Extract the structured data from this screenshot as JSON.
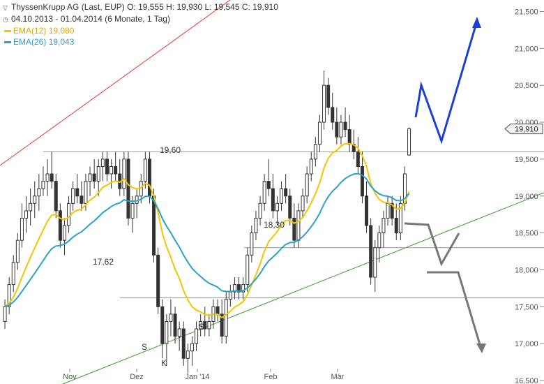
{
  "header": {
    "line1": "ThyssenKrupp AG (Last, EUP)  O: 19,555  H: 19,930  L: 19,545  C: 19,910",
    "line2": "04.10.2013 - 01.04.2014 (6 Monate, 1 Tag)",
    "ema12_label": "EMA(12)",
    "ema12_value": "19,080",
    "ema26_label": "EMA(26)",
    "ema26_value": "19,043"
  },
  "colors": {
    "ema12": "#f5c400",
    "ema26": "#2aa1c8",
    "candle": "#333333",
    "resistance_red": "#e33b2e",
    "support_green": "#3c9a2e",
    "arrow_blue": "#1b3fd6",
    "arrow_gray": "#777777"
  },
  "chart_data": {
    "type": "candlestick",
    "title": "ThyssenKrupp AG (Last, EUP)",
    "ylim": [
      16250,
      21700
    ],
    "y_ticks": [
      "16,500",
      "17,000",
      "17,500",
      "18,000",
      "18,500",
      "19,000",
      "19,500",
      "20,000",
      "20,500",
      "21,000",
      "21,500"
    ],
    "x_ticks": [
      "Nov",
      "Dez",
      "Jan '14",
      "Feb",
      "Mär"
    ],
    "last_price_label": "19,910",
    "horizontal_levels": [
      {
        "value": 19600,
        "label": "19,60"
      },
      {
        "value": 18300,
        "label": "18,30"
      },
      {
        "value": 17620,
        "label": "17,62"
      }
    ],
    "pattern_labels": [
      "S",
      "K",
      "S"
    ],
    "ohlc": [
      [
        17.3,
        17.6,
        17.2,
        17.5
      ],
      [
        17.5,
        17.9,
        17.4,
        17.8
      ],
      [
        17.8,
        18.2,
        17.7,
        18.1
      ],
      [
        18.1,
        18.5,
        18.0,
        18.4
      ],
      [
        18.4,
        18.9,
        18.3,
        18.7
      ],
      [
        18.7,
        19.0,
        18.5,
        18.8
      ],
      [
        18.8,
        19.1,
        18.6,
        18.9
      ],
      [
        18.9,
        19.2,
        18.7,
        19.0
      ],
      [
        19.0,
        19.3,
        18.8,
        19.1
      ],
      [
        19.1,
        19.4,
        19.0,
        19.2
      ],
      [
        19.2,
        19.5,
        19.0,
        19.3
      ],
      [
        19.3,
        19.6,
        19.1,
        19.2
      ],
      [
        19.2,
        19.3,
        18.7,
        18.8
      ],
      [
        18.8,
        18.9,
        18.3,
        18.4
      ],
      [
        18.4,
        18.7,
        18.2,
        18.6
      ],
      [
        18.6,
        19.0,
        18.5,
        18.9
      ],
      [
        18.9,
        19.2,
        18.8,
        19.1
      ],
      [
        19.1,
        19.3,
        18.9,
        19.0
      ],
      [
        19.0,
        19.2,
        18.8,
        18.9
      ],
      [
        18.9,
        19.3,
        18.8,
        19.2
      ],
      [
        19.2,
        19.4,
        19.0,
        19.3
      ],
      [
        19.3,
        19.5,
        19.1,
        19.2
      ],
      [
        19.2,
        19.5,
        19.0,
        19.4
      ],
      [
        19.4,
        19.6,
        19.2,
        19.5
      ],
      [
        19.5,
        19.6,
        19.2,
        19.3
      ],
      [
        19.3,
        19.5,
        19.1,
        19.4
      ],
      [
        19.4,
        19.6,
        19.2,
        19.3
      ],
      [
        19.3,
        19.5,
        19.0,
        19.1
      ],
      [
        19.1,
        19.6,
        19.0,
        19.5
      ],
      [
        19.5,
        19.6,
        18.6,
        18.7
      ],
      [
        18.7,
        19.0,
        18.5,
        18.9
      ],
      [
        18.9,
        19.1,
        18.7,
        19.0
      ],
      [
        19.0,
        19.3,
        18.9,
        19.2
      ],
      [
        19.2,
        19.6,
        19.1,
        19.5
      ],
      [
        19.5,
        19.6,
        18.9,
        19.0
      ],
      [
        19.0,
        19.1,
        18.1,
        18.2
      ],
      [
        18.2,
        18.3,
        17.4,
        17.5
      ],
      [
        17.5,
        17.6,
        16.8,
        17.0
      ],
      [
        17.0,
        17.4,
        16.7,
        17.3
      ],
      [
        17.3,
        17.6,
        17.1,
        17.4
      ],
      [
        17.4,
        17.5,
        17.0,
        17.1
      ],
      [
        17.1,
        17.3,
        16.9,
        17.2
      ],
      [
        17.2,
        17.3,
        16.7,
        16.8
      ],
      [
        16.8,
        17.0,
        16.6,
        16.9
      ],
      [
        16.9,
        17.1,
        16.7,
        17.0
      ],
      [
        17.0,
        17.3,
        16.9,
        17.2
      ],
      [
        17.2,
        17.4,
        17.1,
        17.3
      ],
      [
        17.3,
        17.5,
        17.1,
        17.2
      ],
      [
        17.2,
        17.4,
        17.1,
        17.3
      ],
      [
        17.3,
        17.6,
        17.2,
        17.5
      ],
      [
        17.5,
        17.6,
        17.3,
        17.4
      ],
      [
        17.4,
        17.6,
        17.0,
        17.1
      ],
      [
        17.1,
        17.7,
        17.0,
        17.6
      ],
      [
        17.6,
        17.8,
        17.5,
        17.7
      ],
      [
        17.7,
        17.9,
        17.6,
        17.8
      ],
      [
        17.8,
        17.9,
        17.6,
        17.7
      ],
      [
        17.7,
        17.9,
        17.6,
        17.8
      ],
      [
        17.8,
        18.3,
        17.7,
        18.2
      ],
      [
        18.2,
        18.6,
        18.1,
        18.5
      ],
      [
        18.5,
        18.8,
        18.4,
        18.7
      ],
      [
        18.7,
        19.0,
        18.6,
        18.9
      ],
      [
        18.9,
        19.3,
        18.8,
        19.2
      ],
      [
        19.2,
        19.5,
        19.0,
        19.1
      ],
      [
        19.1,
        19.3,
        18.7,
        18.8
      ],
      [
        18.8,
        19.0,
        18.6,
        18.9
      ],
      [
        18.9,
        19.2,
        18.8,
        19.1
      ],
      [
        19.1,
        19.3,
        18.9,
        19.0
      ],
      [
        19.0,
        19.1,
        18.6,
        18.7
      ],
      [
        18.7,
        18.9,
        18.3,
        18.4
      ],
      [
        18.4,
        18.9,
        18.3,
        18.8
      ],
      [
        18.8,
        19.1,
        18.7,
        19.0
      ],
      [
        19.0,
        19.4,
        18.9,
        19.3
      ],
      [
        19.3,
        19.6,
        19.2,
        19.5
      ],
      [
        19.5,
        19.8,
        19.4,
        19.7
      ],
      [
        19.7,
        20.1,
        19.6,
        20.0
      ],
      [
        20.0,
        20.7,
        19.9,
        20.5
      ],
      [
        20.5,
        20.6,
        20.1,
        20.2
      ],
      [
        20.2,
        20.4,
        19.9,
        20.0
      ],
      [
        20.0,
        20.2,
        19.7,
        19.8
      ],
      [
        19.8,
        20.1,
        19.7,
        20.0
      ],
      [
        20.0,
        20.2,
        19.8,
        19.9
      ],
      [
        19.9,
        20.1,
        19.6,
        19.7
      ],
      [
        19.7,
        19.9,
        19.5,
        19.6
      ],
      [
        19.6,
        19.8,
        19.3,
        19.4
      ],
      [
        19.4,
        19.6,
        18.9,
        19.0
      ],
      [
        19.0,
        19.2,
        18.5,
        18.6
      ],
      [
        18.6,
        18.7,
        17.8,
        17.9
      ],
      [
        17.9,
        18.4,
        17.7,
        18.3
      ],
      [
        18.3,
        18.6,
        18.1,
        18.5
      ],
      [
        18.5,
        18.8,
        18.3,
        18.7
      ],
      [
        18.7,
        19.0,
        18.6,
        18.9
      ],
      [
        18.9,
        19.0,
        18.6,
        18.7
      ],
      [
        18.7,
        18.9,
        18.4,
        18.5
      ],
      [
        18.5,
        19.0,
        18.4,
        18.9
      ],
      [
        18.9,
        19.4,
        18.8,
        19.3
      ],
      [
        19.555,
        19.93,
        19.545,
        19.91
      ]
    ],
    "series": [
      {
        "name": "EMA(12)",
        "last": 19.08
      },
      {
        "name": "EMA(26)",
        "last": 19.043
      }
    ],
    "grid": false
  }
}
